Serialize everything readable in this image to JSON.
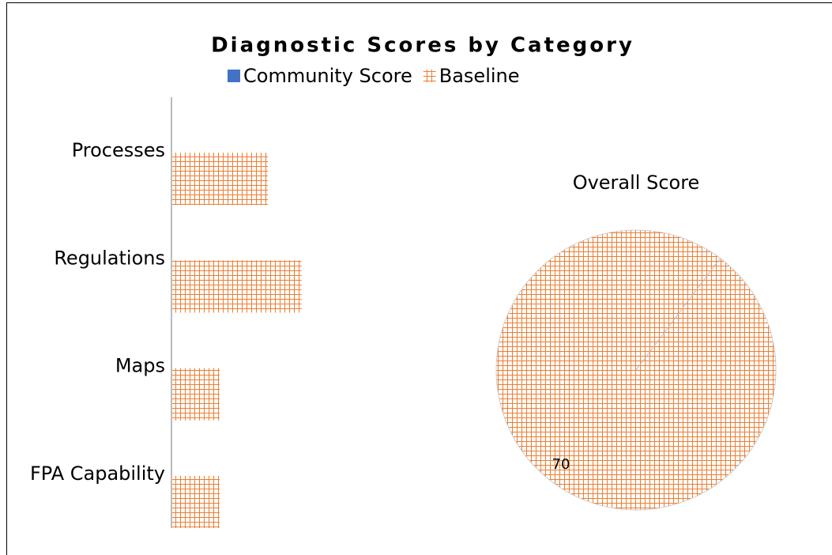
{
  "chart_data": [
    {
      "type": "bar",
      "orientation": "horizontal",
      "title": "Diagnostic Scores by Category",
      "categories": [
        "Processes",
        "Regulations",
        "Maps",
        "FPA Capability"
      ],
      "series": [
        {
          "name": "Community  Score",
          "color": "#4472c4",
          "values": [
            0,
            0,
            0,
            0
          ]
        },
        {
          "name": "Baseline",
          "color": "#ed7d31",
          "pattern": "grid",
          "values": [
            2,
            2.7,
            1,
            1
          ]
        }
      ],
      "xlim": [
        0,
        6
      ]
    },
    {
      "type": "pie",
      "title": "Overall Score",
      "values": [
        70
      ],
      "color": "#ed7d31",
      "pattern": "grid"
    }
  ]
}
